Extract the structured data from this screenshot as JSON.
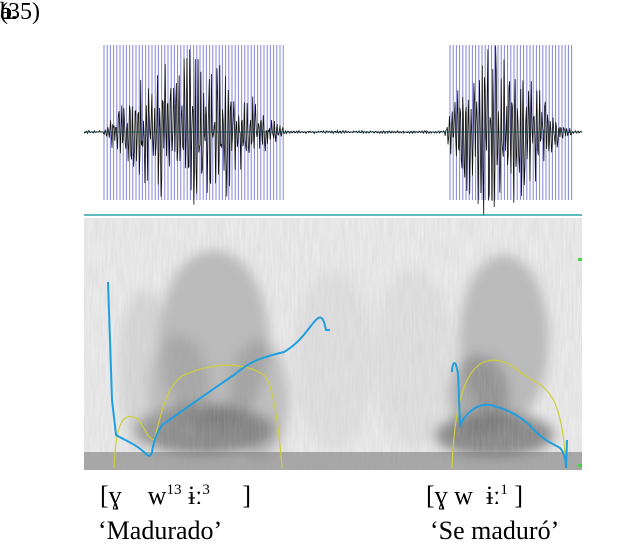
{
  "example_number": "(35)",
  "panels": [
    {
      "label": "a.",
      "transcription": {
        "open": "[ɣ",
        "seg": "w",
        "tone1": "13",
        "vowel": "ɨː",
        "tone2": "3",
        "close": "]"
      },
      "gloss": "‘Madurado’"
    },
    {
      "label": "b.",
      "transcription": {
        "open": "[ɣ w",
        "seg": "",
        "tone1": "",
        "vowel": "ɨː",
        "tone2": "1",
        "close": "]"
      },
      "gloss": "‘Se maduró’"
    }
  ],
  "colors": {
    "pulse": "#6f6fd6",
    "waveform": "#111111",
    "axis_line": "#2aa6a6",
    "pitch": "#1f9fe0",
    "intensity": "#cfcf3a",
    "spectrogram_bg": "#efefef"
  }
}
